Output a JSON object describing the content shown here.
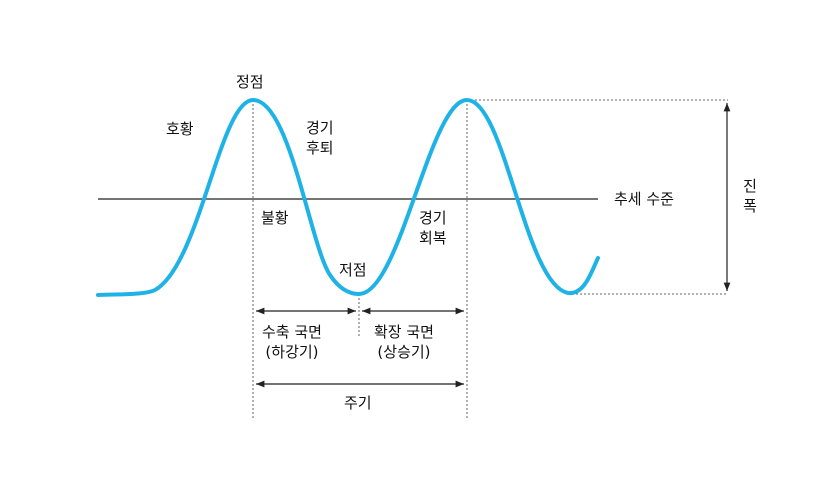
{
  "labels": {
    "peak": "정점",
    "boom": "호황",
    "slowdown": [
      "경기",
      "후퇴"
    ],
    "recession": "불황",
    "trough": "저점",
    "recovery": [
      "경기",
      "회복"
    ],
    "trend": "추세 수준",
    "amplitude": [
      "진",
      "폭"
    ],
    "contraction": [
      "수축 국면",
      "(하강기)"
    ],
    "expansion": [
      "확장 국면",
      "(상승기)"
    ],
    "period": "주기"
  },
  "colors": {
    "curve": "#1fb2e6",
    "line": "#222222",
    "dotted": "#666666"
  }
}
